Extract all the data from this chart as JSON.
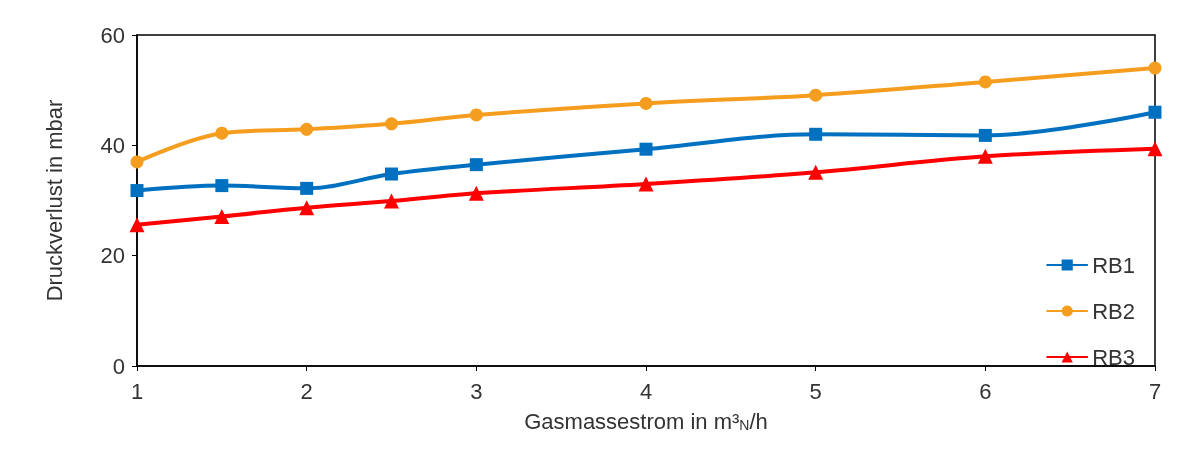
{
  "chart_data": {
    "type": "line",
    "xlabel": "Gasmassestrom in m³$_{N}$/h",
    "ylabel": "Druckverlust in mbar",
    "x": [
      1,
      1.5,
      2,
      2.5,
      3,
      4,
      5,
      6,
      7
    ],
    "series": [
      {
        "name": "RB1",
        "color": "#0070c0",
        "marker": "square",
        "values": [
          31.8,
          32.7,
          32.2,
          34.8,
          36.5,
          39.3,
          42.0,
          41.8,
          46.0
        ]
      },
      {
        "name": "RB2",
        "color": "#f59d1e",
        "marker": "circle",
        "values": [
          37.0,
          42.2,
          42.9,
          43.9,
          45.5,
          47.6,
          49.1,
          51.5,
          54.0
        ]
      },
      {
        "name": "RB3",
        "color": "#ff0000",
        "marker": "triangle",
        "values": [
          25.6,
          27.1,
          28.7,
          29.9,
          31.3,
          33.0,
          35.1,
          38.0,
          39.4
        ]
      }
    ],
    "xlim": [
      1,
      7
    ],
    "xticks": [
      1,
      2,
      3,
      4,
      5,
      6,
      7
    ],
    "ylim": [
      0,
      60
    ],
    "yticks": [
      0,
      20,
      40,
      60
    ],
    "grid": false,
    "legend": "bottom right",
    "line_style": "solid"
  }
}
